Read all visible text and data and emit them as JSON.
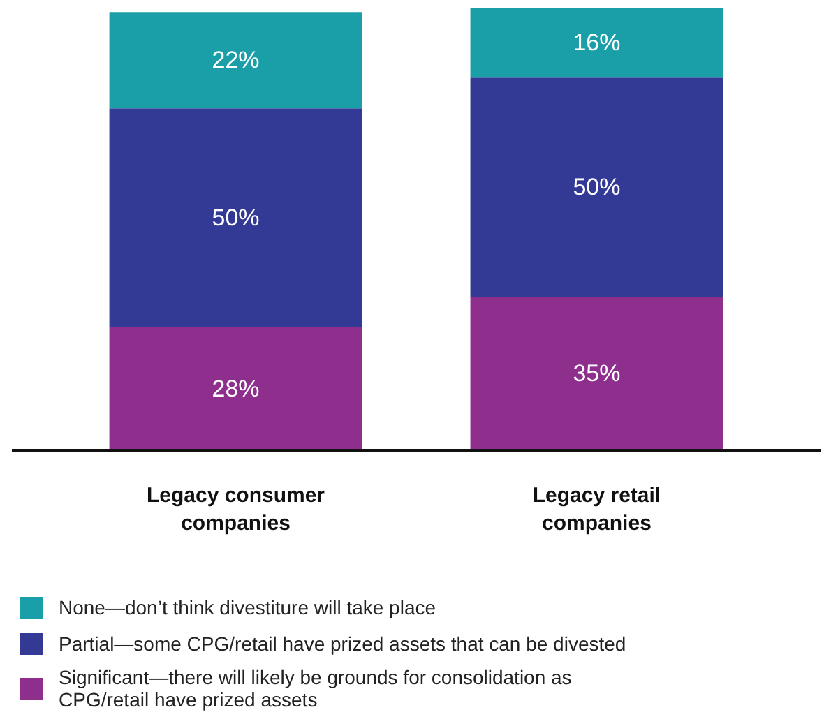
{
  "chart_data": {
    "type": "bar",
    "stacked": true,
    "categories": [
      "Legacy consumer companies",
      "Legacy retail companies"
    ],
    "series": [
      {
        "name": "Significant—there will likely be grounds for consolidation as CPG/retail have prized assets",
        "color": "#8e2f8e",
        "values": [
          28,
          35
        ],
        "value_labels": [
          "28%",
          "35%"
        ]
      },
      {
        "name": "Partial—some CPG/retail have prized assets that can be divested",
        "color": "#323a96",
        "values": [
          50,
          50
        ],
        "value_labels": [
          "50%",
          "50%"
        ]
      },
      {
        "name": "None—don’t think divestiture will take place",
        "color": "#1a9ea8",
        "values": [
          22,
          16
        ],
        "value_labels": [
          "22%",
          "16%"
        ]
      }
    ],
    "legend": "bottom"
  }
}
